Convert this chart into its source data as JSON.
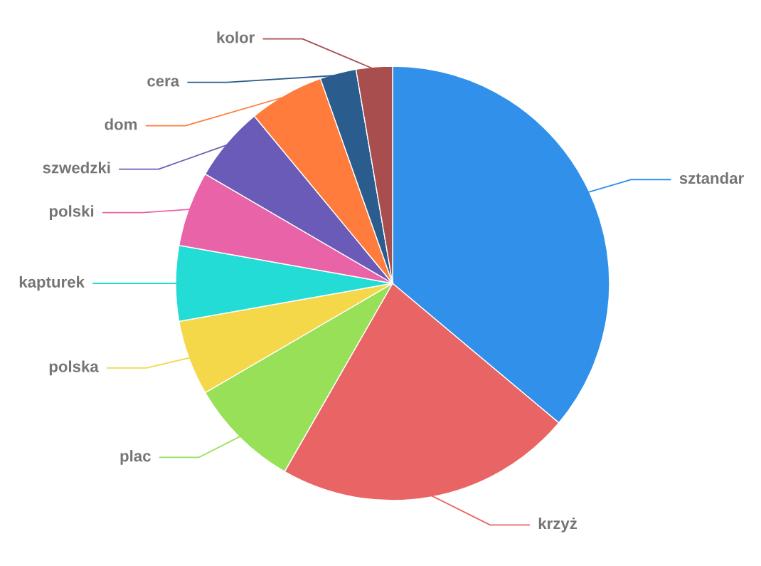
{
  "chart_data": {
    "type": "pie",
    "categories": [
      "sztandar",
      "krzyż",
      "plac",
      "polska",
      "kapturek",
      "polski",
      "szwedzki",
      "dom",
      "cera",
      "kolor"
    ],
    "values": [
      36.1,
      22.2,
      8.3,
      5.6,
      5.6,
      5.6,
      5.6,
      5.6,
      2.7,
      2.7
    ],
    "colors": [
      "#3090ea",
      "#e96565",
      "#97e057",
      "#f4d84a",
      "#22dcd5",
      "#e963a8",
      "#6a5bb8",
      "#ff7c3c",
      "#2a5c8d",
      "#a84e4e"
    ],
    "legend": false
  }
}
